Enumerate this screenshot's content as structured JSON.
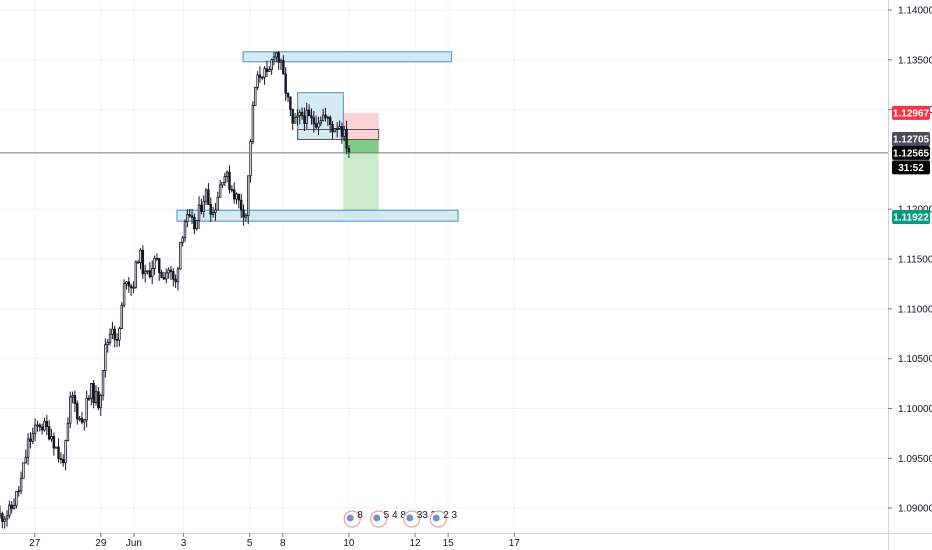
{
  "chart_data": {
    "type": "candlestick",
    "ylim": [
      1.0875,
      1.141
    ],
    "xlim": [
      -1.05,
      25.8
    ],
    "x_ticks": [
      {
        "label": "27",
        "x": 0
      },
      {
        "label": "29",
        "x": 2
      },
      {
        "label": "Jun",
        "x": 3
      },
      {
        "label": "3",
        "x": 4.5
      },
      {
        "label": "5",
        "x": 6.5
      },
      {
        "label": "8",
        "x": 7.5
      },
      {
        "label": "10",
        "x": 9.5
      },
      {
        "label": "12",
        "x": 11.5
      },
      {
        "label": "15",
        "x": 12.5
      },
      {
        "label": "17",
        "x": 14.5
      }
    ],
    "y_ticks": [
      {
        "label": "1.14000",
        "value": 1.14
      },
      {
        "label": "1.13500",
        "value": 1.135
      },
      {
        "label": "1.13000",
        "value": 1.13
      },
      {
        "label": "1.12000",
        "value": 1.12
      },
      {
        "label": "1.11500",
        "value": 1.115
      },
      {
        "label": "1.11000",
        "value": 1.11
      },
      {
        "label": "1.10500",
        "value": 1.105
      },
      {
        "label": "1.10000",
        "value": 1.1
      },
      {
        "label": "1.09500",
        "value": 1.095
      },
      {
        "label": "1.09000",
        "value": 1.09
      }
    ],
    "price_badges": [
      {
        "label": "1.12967",
        "value": 1.12967,
        "color": "#f23645"
      },
      {
        "label": "1.12705",
        "value": 1.12705,
        "color": "#4a4e5a"
      },
      {
        "label": "1.12565",
        "value": 1.12565,
        "color": "#000000"
      },
      {
        "label": "31:52",
        "value": 1.1242,
        "color": "#000000"
      },
      {
        "label": "1.11922",
        "value": 1.11922,
        "color": "#089981"
      }
    ],
    "current_price_line": 1.12565,
    "path_anchors": [
      [
        -1.05,
        1.0892
      ],
      [
        -0.75,
        1.0896
      ],
      [
        -0.45,
        1.0921
      ],
      [
        -0.2,
        1.0965
      ],
      [
        0.15,
        1.0985
      ],
      [
        0.5,
        1.0975
      ],
      [
        0.8,
        1.0945
      ],
      [
        0.95,
        1.0962
      ],
      [
        1.1,
        1.1015
      ],
      [
        1.4,
        1.0985
      ],
      [
        1.7,
        1.1018
      ],
      [
        1.95,
        1.1005
      ],
      [
        2.1,
        1.1055
      ],
      [
        2.35,
        1.1085
      ],
      [
        2.5,
        1.1062
      ],
      [
        2.75,
        1.1135
      ],
      [
        2.95,
        1.112
      ],
      [
        3.15,
        1.1158
      ],
      [
        3.35,
        1.113
      ],
      [
        3.6,
        1.1148
      ],
      [
        3.85,
        1.1135
      ],
      [
        4.05,
        1.114
      ],
      [
        4.25,
        1.1122
      ],
      [
        4.4,
        1.1168
      ],
      [
        4.55,
        1.119
      ],
      [
        4.85,
        1.1182
      ],
      [
        5.15,
        1.1218
      ],
      [
        5.4,
        1.1196
      ],
      [
        5.7,
        1.1238
      ],
      [
        5.95,
        1.1222
      ],
      [
        6.2,
        1.1205
      ],
      [
        6.4,
        1.1195
      ],
      [
        6.5,
        1.126
      ],
      [
        6.65,
        1.132
      ],
      [
        6.85,
        1.134
      ],
      [
        7.05,
        1.133
      ],
      [
        7.25,
        1.1362
      ],
      [
        7.42,
        1.1346
      ],
      [
        7.6,
        1.1318
      ],
      [
        7.8,
        1.1283
      ],
      [
        8.1,
        1.1295
      ],
      [
        8.4,
        1.1287
      ],
      [
        8.7,
        1.1295
      ],
      [
        9.0,
        1.1282
      ],
      [
        9.2,
        1.1287
      ],
      [
        9.4,
        1.127
      ],
      [
        9.5,
        1.12565
      ]
    ],
    "candle_count": 150,
    "seed": 11,
    "zones": [
      {
        "name": "resistance-zone",
        "x0": 6.3,
        "x1": 12.6,
        "y0": 1.1358,
        "y1": 1.1348
      },
      {
        "name": "consolidation-range",
        "x0": 7.95,
        "x1": 9.33,
        "y0": 1.1317,
        "y1": 1.127
      },
      {
        "name": "breakdown-level",
        "x0": 7.95,
        "x1": 10.4,
        "y0": 1.128,
        "y1": 1.127
      },
      {
        "name": "support-zone",
        "x0": 4.3,
        "x1": 12.8,
        "y0": 1.1199,
        "y1": 1.1188
      }
    ],
    "position": {
      "type": "short",
      "x0": 9.33,
      "x1": 10.4,
      "entry": 1.12705,
      "stop": 1.12967,
      "target": 1.11922
    },
    "event_markers": [
      {
        "x": 9.6,
        "text": "8"
      },
      {
        "x": 10.4,
        "text": "5 4 8"
      },
      {
        "x": 11.4,
        "text": "33 2"
      },
      {
        "x": 12.2,
        "text": "2 3"
      }
    ],
    "colors": {
      "candle": "#131722",
      "grid": "#f0f3fa",
      "axis_border": "#d1d4dc",
      "zone_fill": "#cfe6f4",
      "zone_stroke": "#4a90c4",
      "stop_fill": "#fad2d5",
      "target_fill": "#c9ebc9",
      "target_fill_strong": "#7fcc86"
    }
  }
}
